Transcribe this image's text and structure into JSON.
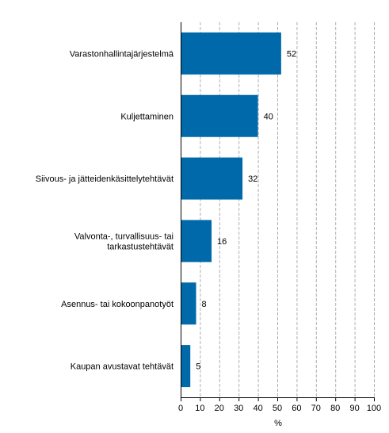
{
  "chart_data": {
    "type": "bar",
    "orientation": "horizontal",
    "categories": [
      [
        "Varastonhallintajärjestelmä"
      ],
      [
        "Kuljettaminen"
      ],
      [
        "Siivous- ja jätteidenkäsittelytehtävät"
      ],
      [
        "Valvonta-, turvallisuus- tai",
        "tarkastustehtävät"
      ],
      [
        "Asennus- tai kokoonpanotyöt"
      ],
      [
        "Kaupan avustavat tehtävät"
      ]
    ],
    "values": [
      52,
      40,
      32,
      16,
      8,
      5
    ],
    "value_labels": [
      "52",
      "40",
      "32",
      "16",
      "8",
      "5"
    ],
    "xlabel": "%",
    "xlim": [
      0,
      100
    ],
    "xticks": [
      0,
      10,
      20,
      30,
      40,
      50,
      60,
      70,
      80,
      90,
      100
    ],
    "grid": "vertical-dashed",
    "bar_color": "#0069aa",
    "grid_color": "#b0b0b0"
  }
}
